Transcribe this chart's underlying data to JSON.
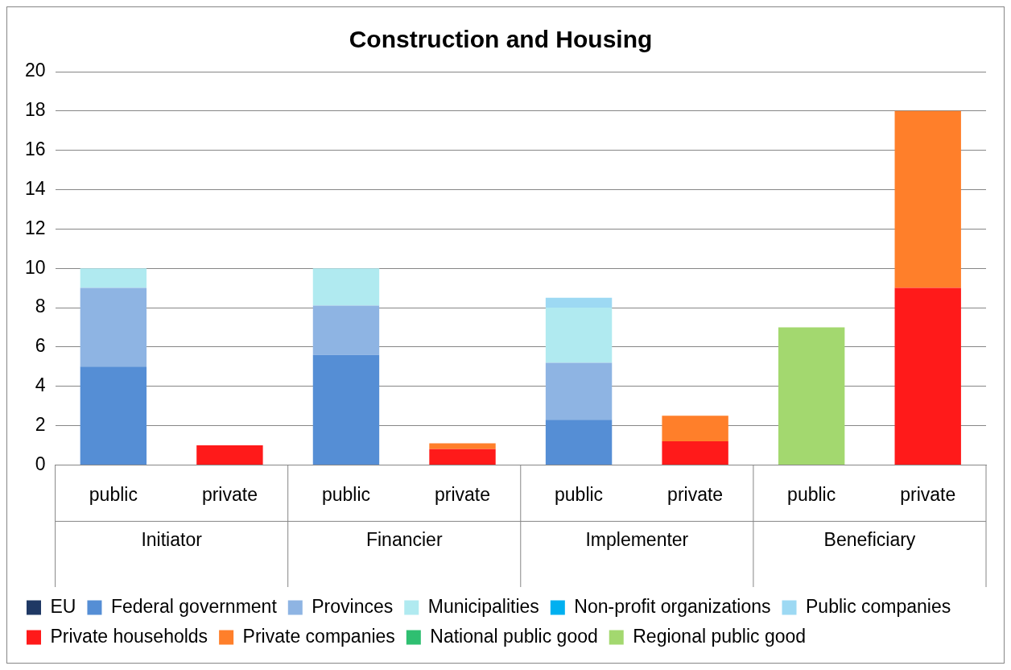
{
  "chart_data": {
    "type": "bar",
    "title": "Construction and Housing",
    "categories": [
      "public",
      "private",
      "public",
      "private",
      "public",
      "private",
      "public",
      "private"
    ],
    "annotations": [
      "Initiator",
      "Financier",
      "Implementer",
      "Beneficiary"
    ],
    "stacked": true,
    "ylim": [
      0,
      20
    ],
    "yticks": [
      0,
      2,
      4,
      6,
      8,
      10,
      12,
      14,
      16,
      18,
      20
    ],
    "grid": "y",
    "legend": "bottom",
    "series": [
      {
        "name": "EU",
        "color": "#1f3864",
        "values": [
          null,
          null,
          null,
          null,
          null,
          null,
          null,
          null
        ]
      },
      {
        "name": "Federal government",
        "color": "#558ed5",
        "values": [
          5,
          null,
          5.6,
          null,
          2.3,
          null,
          null,
          null
        ]
      },
      {
        "name": "Provinces",
        "color": "#8eb4e3",
        "values": [
          4,
          null,
          2.5,
          null,
          2.9,
          null,
          null,
          null
        ]
      },
      {
        "name": "Municipalities",
        "color": "#b0eaf0",
        "values": [
          1,
          null,
          1.9,
          null,
          2.8,
          null,
          null,
          null
        ]
      },
      {
        "name": "Non-profit organizations",
        "color": "#00b0f0",
        "values": [
          null,
          null,
          null,
          null,
          null,
          null,
          null,
          null
        ]
      },
      {
        "name": "Public companies",
        "color": "#9dd9f3",
        "values": [
          null,
          null,
          null,
          null,
          0.5,
          null,
          null,
          null
        ]
      },
      {
        "name": "Private households",
        "color": "#ff1a1a",
        "values": [
          null,
          1,
          null,
          0.8,
          null,
          1.2,
          null,
          9
        ]
      },
      {
        "name": "Private companies",
        "color": "#ff7f2a",
        "values": [
          null,
          null,
          null,
          0.3,
          null,
          1.3,
          null,
          9
        ]
      },
      {
        "name": "National public good",
        "color": "#2fbf71",
        "values": [
          null,
          null,
          null,
          null,
          null,
          null,
          null,
          null
        ]
      },
      {
        "name": "Regional public good",
        "color": "#a3d86f",
        "values": [
          null,
          null,
          null,
          null,
          null,
          null,
          7,
          null
        ]
      }
    ]
  }
}
